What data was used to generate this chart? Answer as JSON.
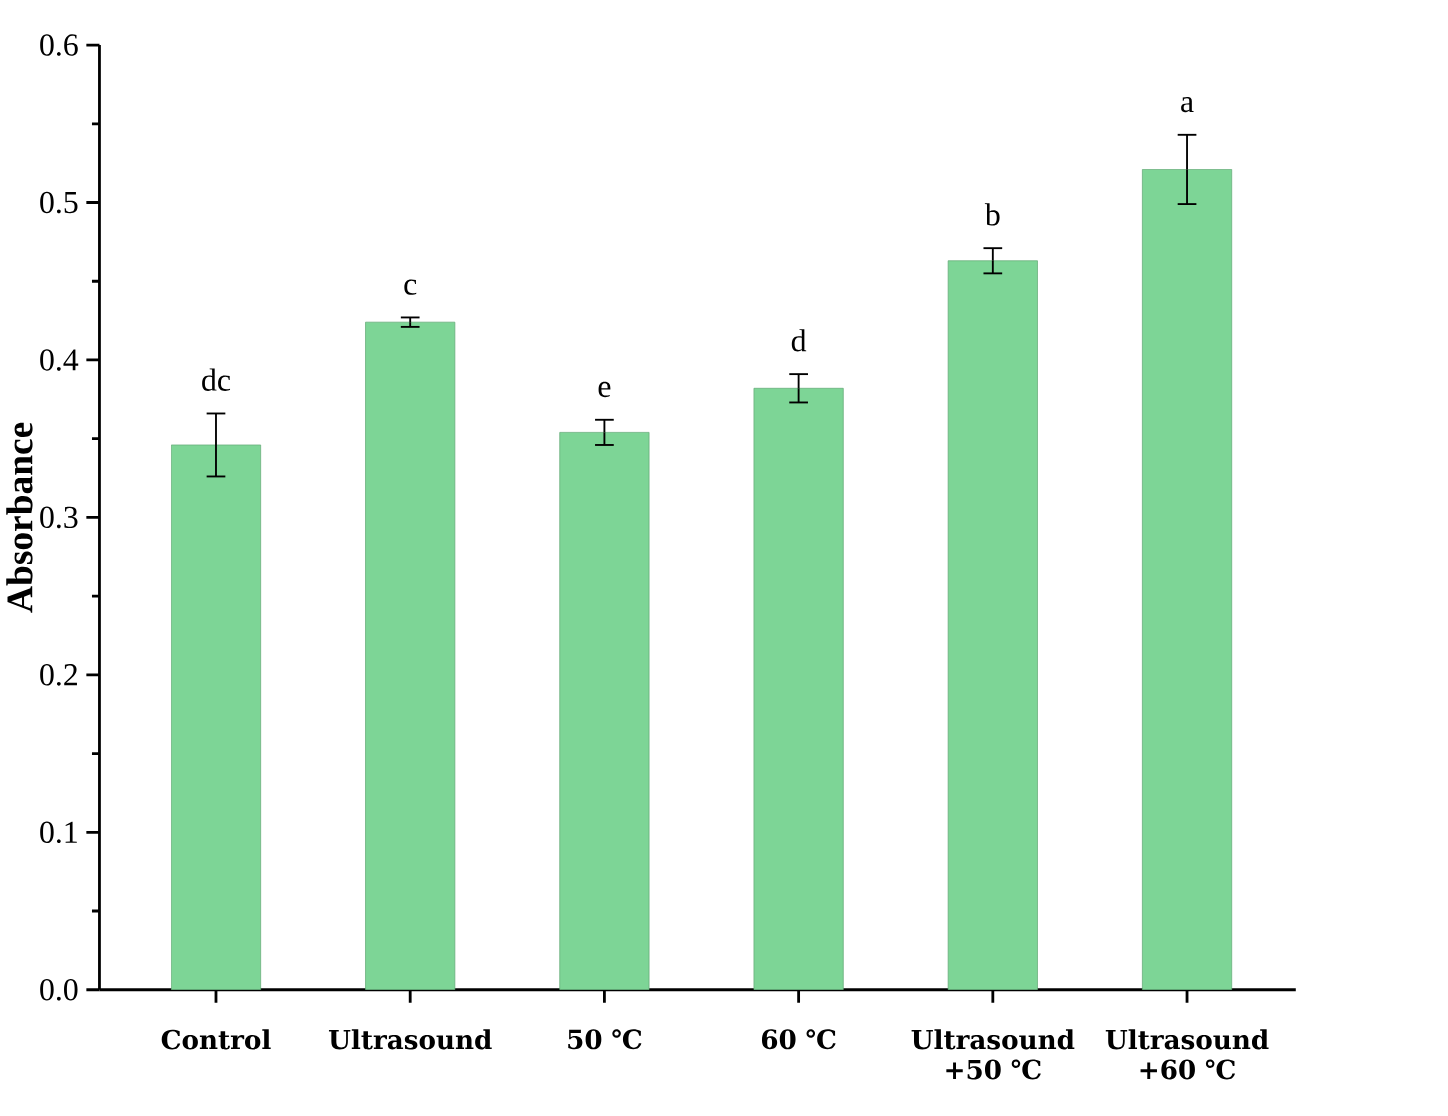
{
  "chart_data": {
    "type": "bar",
    "ylabel": "Absorbance",
    "categories": [
      "Control",
      "Ultrasound",
      "50 ℃",
      "60 ℃",
      "Ultrasound +50 ℃",
      "Ultrasound +60 ℃"
    ],
    "values": [
      0.346,
      0.424,
      0.354,
      0.382,
      0.463,
      0.521
    ],
    "errors": [
      0.02,
      0.003,
      0.008,
      0.009,
      0.008,
      0.022
    ],
    "color": "#7dd596",
    "ylim": [
      0,
      0.6
    ],
    "yticks": [
      {
        "value": 0,
        "label": "0.0"
      },
      {
        "value": 0.1,
        "label": "0.1"
      },
      {
        "value": 0.2,
        "label": "0.2"
      },
      {
        "value": 0.3,
        "label": "0.3"
      },
      {
        "value": 0.4,
        "label": "0.4"
      },
      {
        "value": 0.5,
        "label": "0.5"
      },
      {
        "value": 0.6,
        "label": "0.6"
      }
    ],
    "grid": false,
    "annotations": [
      "dc",
      "c",
      "e",
      "d",
      "b",
      "a"
    ]
  }
}
